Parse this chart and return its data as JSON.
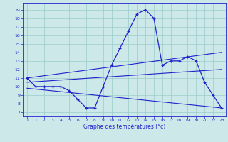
{
  "hours": [
    0,
    1,
    2,
    3,
    4,
    5,
    6,
    7,
    8,
    9,
    10,
    11,
    12,
    13,
    14,
    15,
    16,
    17,
    18,
    19,
    20,
    21,
    22,
    23
  ],
  "temp_actual": [
    11,
    10,
    10,
    10,
    10,
    9.5,
    8.5,
    7.5,
    7.5,
    10,
    12.5,
    14.5,
    16.5,
    18.5,
    19,
    18,
    12.5,
    13,
    13,
    13.5,
    13,
    10.5,
    9,
    7.5
  ],
  "trend1_x": [
    0,
    23
  ],
  "trend1_y": [
    11.0,
    14.0
  ],
  "trend2_x": [
    0,
    23
  ],
  "trend2_y": [
    10.5,
    12.0
  ],
  "trend3_x": [
    0,
    23
  ],
  "trend3_y": [
    9.8,
    7.5
  ],
  "line_color": "#2222cc",
  "bg_color": "#cce8e8",
  "grid_color": "#99cccc",
  "xlabel": "Graphe des températures (°c)",
  "yticks": [
    7,
    8,
    9,
    10,
    11,
    12,
    13,
    14,
    15,
    16,
    17,
    18,
    19
  ],
  "xticks": [
    0,
    1,
    2,
    3,
    4,
    5,
    6,
    7,
    8,
    9,
    10,
    11,
    12,
    13,
    14,
    15,
    16,
    17,
    18,
    19,
    20,
    21,
    22,
    23
  ],
  "ylim": [
    6.5,
    19.8
  ],
  "xlim": [
    -0.5,
    23.5
  ]
}
